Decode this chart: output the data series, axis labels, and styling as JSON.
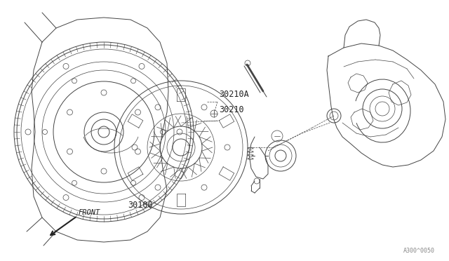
{
  "bg_color": "#ffffff",
  "line_color": "#444444",
  "text_color": "#222222",
  "fig_width": 6.4,
  "fig_height": 3.72,
  "dpi": 100,
  "ref_code": "A300^0050"
}
